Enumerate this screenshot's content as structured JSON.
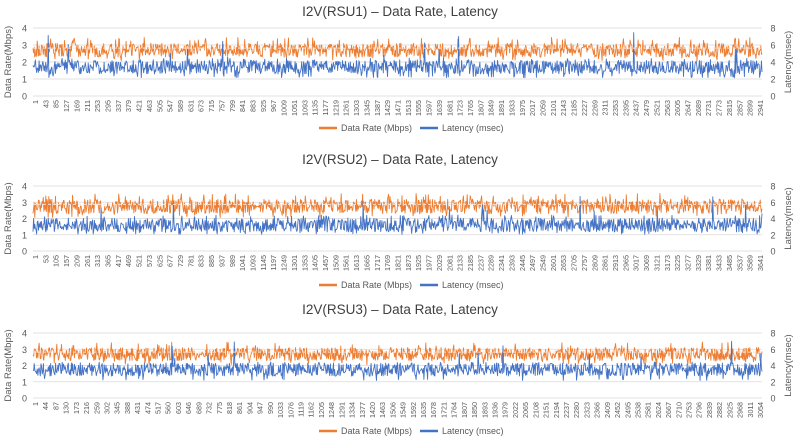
{
  "colors": {
    "data_rate": "#ED7D31",
    "latency": "#4472C4",
    "grid": "#d9d9d9",
    "text": "#595959",
    "title": "#404040"
  },
  "chart_data": [
    {
      "type": "line",
      "title": "I2V(RSU1) – Data Rate, Latency",
      "ylabel_left": "Data Rate(Mbps)",
      "ylabel_right": "Latency(msec)",
      "yticks_left": [
        "0",
        "1",
        "2",
        "3",
        "4"
      ],
      "yticks_right": [
        "0",
        "2",
        "4",
        "6",
        "8"
      ],
      "ylim_left": [
        0,
        4
      ],
      "ylim_right": [
        0,
        8
      ],
      "n_samples": 2983,
      "x_tick_labels": [
        "1",
        "43",
        "85",
        "127",
        "169",
        "211",
        "253",
        "295",
        "337",
        "379",
        "421",
        "463",
        "505",
        "547",
        "589",
        "631",
        "673",
        "715",
        "757",
        "799",
        "841",
        "883",
        "925",
        "967",
        "1009",
        "1051",
        "1093",
        "1135",
        "1177",
        "1219",
        "1261",
        "1303",
        "1345",
        "1387",
        "1429",
        "1471",
        "1513",
        "1555",
        "1597",
        "1639",
        "1681",
        "1723",
        "1765",
        "1807",
        "1849",
        "1891",
        "1933",
        "1975",
        "2017",
        "2059",
        "2101",
        "2143",
        "2185",
        "2227",
        "2269",
        "2311",
        "2353",
        "2395",
        "2437",
        "2479",
        "2521",
        "2563",
        "2605",
        "2647",
        "2689",
        "2731",
        "2773",
        "2815",
        "2857",
        "2899",
        "2941"
      ],
      "grid": true,
      "legend_position": "bottom",
      "series": [
        {
          "name": "Data Rate (Mbps)",
          "axis": "left",
          "mean": 2.7,
          "low": 2.3,
          "high": 3.2
        },
        {
          "name": "Latency (msec)",
          "axis": "right",
          "mean": 3.4,
          "low": 2.4,
          "high": 4.2,
          "max": 7.5
        }
      ]
    },
    {
      "type": "line",
      "title": "I2V(RSU2) – Data Rate, Latency",
      "ylabel_left": "Data Rate(Mbps)",
      "ylabel_right": "Latency(msec)",
      "yticks_left": [
        "0",
        "1",
        "2",
        "3",
        "4"
      ],
      "yticks_right": [
        "0",
        "2",
        "4",
        "6",
        "8"
      ],
      "ylim_left": [
        0,
        4
      ],
      "ylim_right": [
        0,
        8
      ],
      "n_samples": 3693,
      "x_tick_labels": [
        "1",
        "53",
        "105",
        "157",
        "209",
        "261",
        "313",
        "365",
        "417",
        "469",
        "521",
        "573",
        "625",
        "677",
        "729",
        "781",
        "833",
        "885",
        "937",
        "989",
        "1041",
        "1093",
        "1145",
        "1197",
        "1249",
        "1301",
        "1353",
        "1405",
        "1457",
        "1509",
        "1561",
        "1613",
        "1665",
        "1717",
        "1769",
        "1821",
        "1873",
        "1925",
        "1977",
        "2029",
        "2081",
        "2133",
        "2185",
        "2237",
        "2289",
        "2341",
        "2393",
        "2445",
        "2497",
        "2549",
        "2601",
        "2653",
        "2705",
        "2757",
        "2809",
        "2861",
        "2913",
        "2965",
        "3017",
        "3069",
        "3121",
        "3173",
        "3225",
        "3277",
        "3329",
        "3381",
        "3433",
        "3485",
        "3537",
        "3589",
        "3641"
      ],
      "grid": true,
      "legend_position": "bottom",
      "series": [
        {
          "name": "Data Rate (Mbps)",
          "axis": "left",
          "mean": 2.75,
          "low": 2.3,
          "high": 3.3
        },
        {
          "name": "Latency (msec)",
          "axis": "right",
          "mean": 3.2,
          "low": 2.3,
          "high": 4.2,
          "max": 7.2
        }
      ]
    },
    {
      "type": "line",
      "title": "I2V(RSU3) – Data Rate, Latency",
      "ylabel_left": "Data Rate(Mbps)",
      "ylabel_right": "Latency(msec)",
      "yticks_left": [
        "0",
        "1",
        "2",
        "3",
        "4"
      ],
      "yticks_right": [
        "0",
        "2",
        "4",
        "6",
        "8"
      ],
      "ylim_left": [
        0,
        4
      ],
      "ylim_right": [
        0,
        8
      ],
      "n_samples": 3097,
      "x_tick_labels": [
        "1",
        "44",
        "87",
        "130",
        "173",
        "216",
        "259",
        "302",
        "345",
        "388",
        "431",
        "474",
        "517",
        "560",
        "603",
        "646",
        "689",
        "732",
        "775",
        "818",
        "861",
        "904",
        "947",
        "990",
        "1033",
        "1076",
        "1119",
        "1162",
        "1205",
        "1248",
        "1291",
        "1334",
        "1377",
        "1420",
        "1463",
        "1506",
        "1549",
        "1592",
        "1635",
        "1678",
        "1721",
        "1764",
        "1807",
        "1850",
        "1893",
        "1936",
        "1979",
        "2022",
        "2065",
        "2108",
        "2151",
        "2194",
        "2237",
        "2280",
        "2323",
        "2366",
        "2409",
        "2452",
        "2495",
        "2538",
        "2581",
        "2624",
        "2667",
        "2710",
        "2753",
        "2796",
        "2839",
        "2882",
        "2925",
        "2968",
        "3011",
        "3054"
      ],
      "grid": true,
      "legend_position": "bottom",
      "series": [
        {
          "name": "Data Rate (Mbps)",
          "axis": "left",
          "mean": 2.7,
          "low": 2.3,
          "high": 3.2
        },
        {
          "name": "Latency (msec)",
          "axis": "right",
          "mean": 3.5,
          "low": 2.4,
          "high": 4.2,
          "max": 7.0
        }
      ]
    }
  ]
}
